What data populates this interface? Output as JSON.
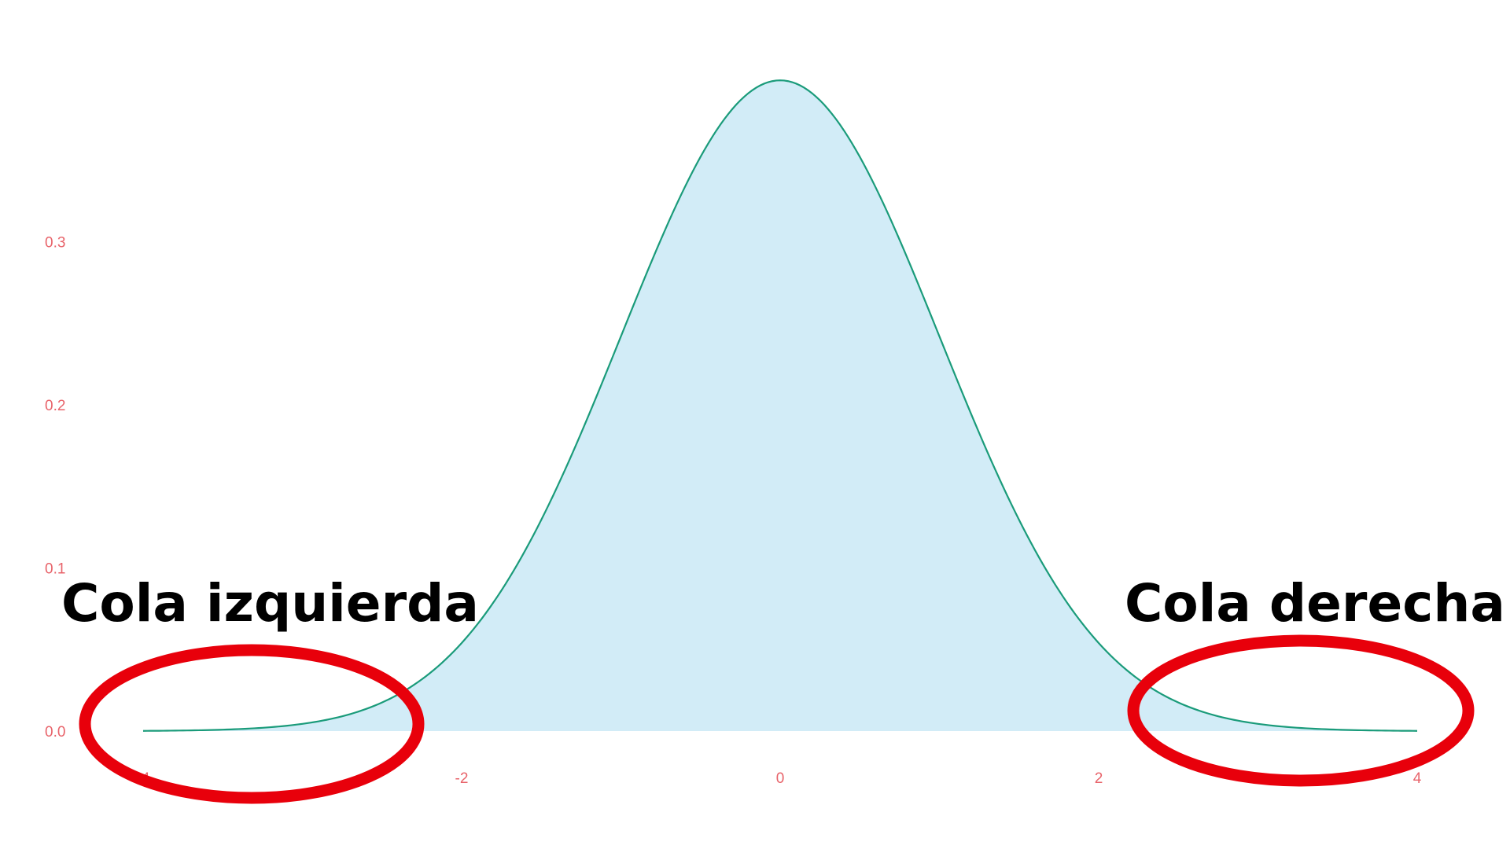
{
  "chart_data": {
    "type": "area",
    "title": "",
    "xlabel": "",
    "ylabel": "",
    "xlim": [
      -4,
      4
    ],
    "ylim": [
      0,
      0.4
    ],
    "xticks": [
      {
        "value": -4,
        "label": "-4"
      },
      {
        "value": -2,
        "label": "-2"
      },
      {
        "value": 0,
        "label": "0"
      },
      {
        "value": 2,
        "label": "2"
      },
      {
        "value": 4,
        "label": "4"
      }
    ],
    "yticks": [
      {
        "value": 0.0,
        "label": "0.0"
      },
      {
        "value": 0.1,
        "label": "0.1"
      },
      {
        "value": 0.2,
        "label": "0.2"
      },
      {
        "value": 0.3,
        "label": "0.3"
      }
    ],
    "grid": false,
    "legend": false,
    "series": [
      {
        "x": [
          -4,
          -3.5,
          -3,
          -2.5,
          -2,
          -1.5,
          -1,
          -0.5,
          0,
          0.5,
          1,
          1.5,
          2,
          2.5,
          3,
          3.5,
          4
        ],
        "values": [
          0.0001,
          0.0009,
          0.0044,
          0.0175,
          0.054,
          0.1295,
          0.242,
          0.352,
          0.399,
          0.352,
          0.242,
          0.1295,
          0.054,
          0.0175,
          0.0044,
          0.0009,
          0.0001
        ]
      }
    ],
    "annotations": [
      {
        "text": "Cola izquierda",
        "x": -2.5
      },
      {
        "text": "Cola derecha",
        "x": 3.3
      }
    ],
    "colors": {
      "line": "#1a9b7a",
      "fill": "#d2ecf7",
      "tick_text": "#e8636a",
      "annotation_text": "#000000",
      "highlight_ring": "#e8000b"
    }
  }
}
